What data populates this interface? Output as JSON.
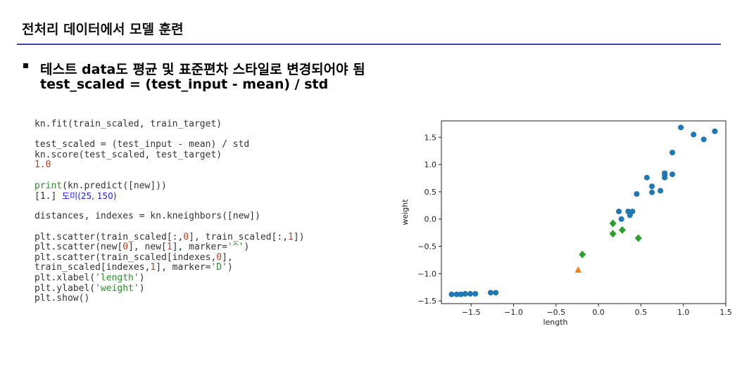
{
  "slide": {
    "title": "전처리 데이터에서 모델 훈련",
    "bullet": "테스트 data도 평균 및 표준편차 스타일로 변경되어야 됨",
    "formula": "test_scaled = (test_input - mean) / std"
  },
  "code": {
    "line1": "kn.fit(train_scaled, train_target)",
    "line2": "test_scaled = (test_input - mean) / std",
    "line3": "kn.score(test_scaled, test_target)",
    "out1": "1.0",
    "line4_a": "print",
    "line4_b": "(kn.predict([new]))",
    "out2_a": "[1.]",
    "out2_b": "도미(25, 150)",
    "line5": "distances, indexes = kn.kneighbors([new])",
    "line6_a": "plt.scatter(train_scaled[:,",
    "line6_b": "0",
    "line6_c": "], train_scaled[:,",
    "line6_d": "1",
    "line6_e": "])",
    "line7_a": "plt.scatter(new[",
    "line7_b": "0",
    "line7_c": "], new[",
    "line7_d": "1",
    "line7_e": "], marker=",
    "line7_f": "'^'",
    "line7_g": ")",
    "line8_a": "plt.scatter(train_scaled[indexes,",
    "line8_b": "0",
    "line8_c": "],",
    "line9_a": "train_scaled[indexes,",
    "line9_b": "1",
    "line9_c": "], marker=",
    "line9_d": "'D'",
    "line9_e": ")",
    "line10_a": "plt.xlabel(",
    "line10_b": "'length'",
    "line10_c": ")",
    "line11_a": "plt.ylabel(",
    "line11_b": "'weight'",
    "line11_c": ")",
    "line12": "plt.show()"
  },
  "chart_data": {
    "type": "scatter",
    "xlabel": "length",
    "ylabel": "weight",
    "xlim": [
      -1.85,
      1.5
    ],
    "ylim": [
      -1.55,
      1.8
    ],
    "xticks": [
      -1.5,
      -1.0,
      -0.5,
      0.0,
      0.5,
      1.0,
      1.5
    ],
    "xtick_labels": [
      "−1.5",
      "−1.0",
      "−0.5",
      "0.0",
      "0.5",
      "1.0",
      "1.5"
    ],
    "yticks": [
      -1.5,
      -1.0,
      -0.5,
      0.0,
      0.5,
      1.0,
      1.5
    ],
    "ytick_labels": [
      "−1.5",
      "−1.0",
      "−0.5",
      "0.0",
      "0.5",
      "1.0",
      "1.5"
    ],
    "grid": false,
    "series": [
      {
        "color": "#1f77b4",
        "marker": "circle",
        "x": [
          -1.73,
          -1.67,
          -1.62,
          -1.57,
          -1.51,
          -1.45,
          -1.27,
          -1.21,
          0.24,
          0.27,
          0.35,
          0.37,
          0.4,
          0.45,
          0.57,
          0.63,
          0.63,
          0.73,
          0.78,
          0.78,
          0.78,
          0.87,
          0.87,
          0.97,
          1.12,
          1.24,
          1.37
        ],
        "y": [
          -1.38,
          -1.38,
          -1.38,
          -1.37,
          -1.37,
          -1.37,
          -1.35,
          -1.35,
          0.14,
          0.0,
          0.14,
          0.07,
          0.14,
          0.46,
          0.76,
          0.6,
          0.49,
          0.52,
          0.84,
          0.81,
          0.76,
          0.82,
          1.22,
          1.68,
          1.55,
          1.46,
          1.61
        ]
      },
      {
        "color": "#ff7f0e",
        "marker": "triangle",
        "x": [
          -0.24
        ],
        "y": [
          -0.93
        ]
      },
      {
        "color": "#2ca02c",
        "marker": "diamond",
        "x": [
          -0.19,
          0.17,
          0.17,
          0.28,
          0.47
        ],
        "y": [
          -0.65,
          -0.08,
          -0.27,
          -0.2,
          -0.35
        ]
      }
    ]
  }
}
